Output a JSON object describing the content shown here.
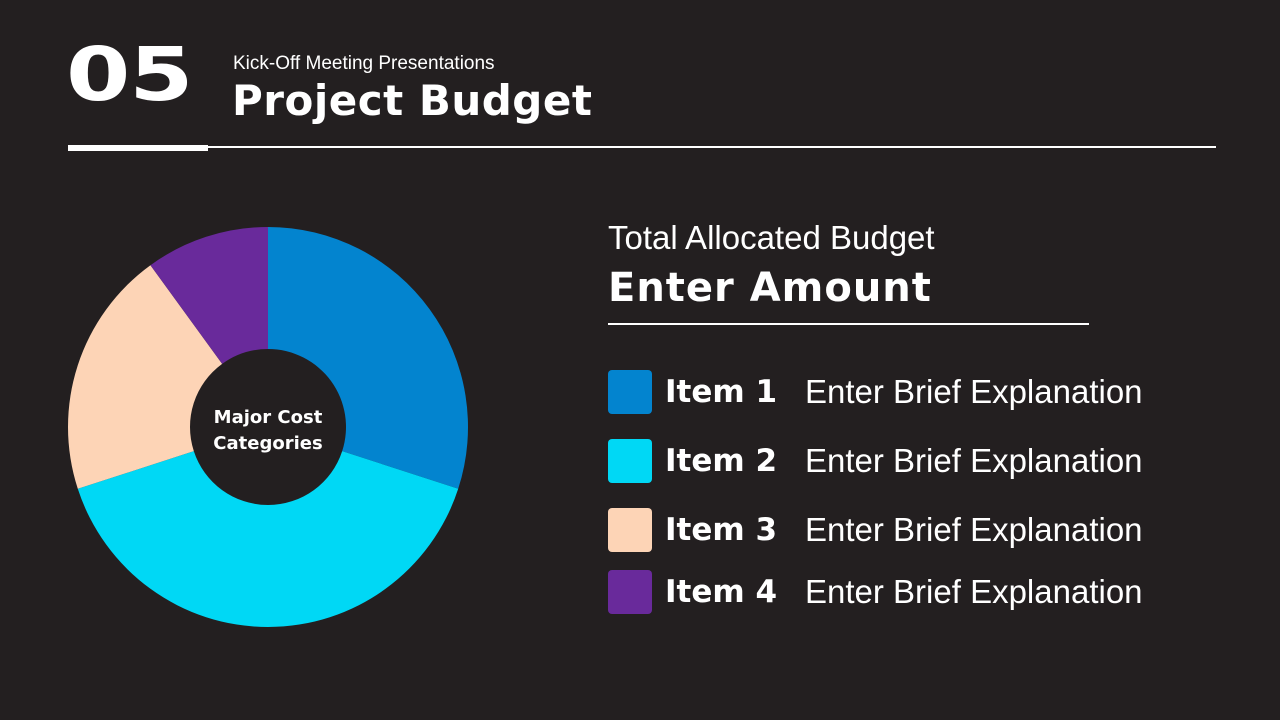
{
  "header": {
    "section_number": "05",
    "subtitle": "Kick-Off Meeting Presentations",
    "title": "Project Budget"
  },
  "budget": {
    "label": "Total Allocated Budget",
    "value": "Enter Amount"
  },
  "legend": [
    {
      "name": "Item 1",
      "description": "Enter Brief Explanation",
      "color": "#0384cf"
    },
    {
      "name": "Item 2",
      "description": "Enter Brief Explanation",
      "color": "#00d8f5"
    },
    {
      "name": "Item 3",
      "description": "Enter Brief Explanation",
      "color": "#fdd4b6"
    },
    {
      "name": "Item 4",
      "description": "Enter Brief Explanation",
      "color": "#692a9b"
    }
  ],
  "chart_data": {
    "type": "pie",
    "variant": "donut",
    "center_label": [
      "Major Cost",
      "Categories"
    ],
    "categories": [
      "Item 1",
      "Item 2",
      "Item 3",
      "Item 4"
    ],
    "values": [
      30,
      40,
      20,
      10
    ],
    "colors": [
      "#0384cf",
      "#00d8f5",
      "#fdd4b6",
      "#692a9b"
    ],
    "start_angle": "top, clockwise"
  },
  "colors": {
    "background": "#231f20",
    "text": "#ffffff"
  }
}
